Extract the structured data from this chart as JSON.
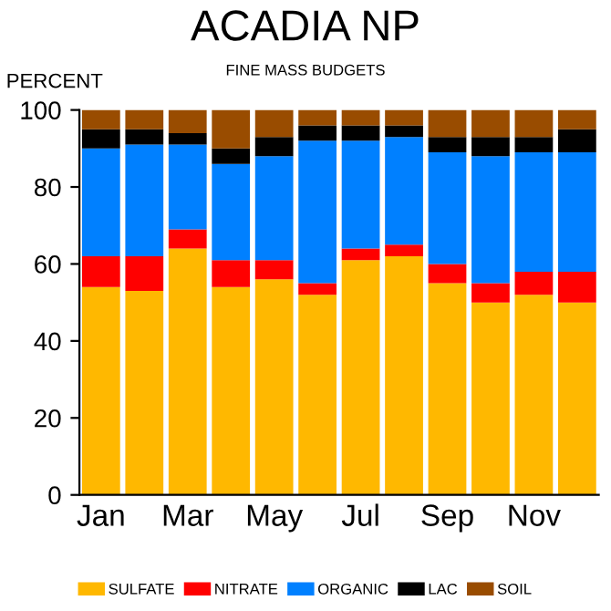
{
  "chart_data": {
    "type": "bar",
    "title": "ACADIA NP",
    "subtitle": "FINE MASS BUDGETS",
    "ylabel": "PERCENT",
    "stacked": true,
    "categories": [
      "Jan",
      null,
      "Mar",
      null,
      "May",
      null,
      "Jul",
      null,
      "Sep",
      null,
      "Nov",
      null
    ],
    "series": [
      {
        "name": "SULFATE",
        "color": "#ffb800",
        "values": [
          54,
          53,
          64,
          54,
          56,
          52,
          61,
          62,
          55,
          50,
          52,
          50
        ]
      },
      {
        "name": "NITRATE",
        "color": "#ff0000",
        "values": [
          8,
          9,
          5,
          7,
          5,
          3,
          3,
          3,
          5,
          5,
          6,
          8
        ]
      },
      {
        "name": "ORGANIC",
        "color": "#0080ff",
        "values": [
          28,
          29,
          22,
          25,
          27,
          37,
          28,
          28,
          29,
          33,
          31,
          31
        ]
      },
      {
        "name": "LAC",
        "color": "#000000",
        "values": [
          5,
          4,
          3,
          4,
          5,
          4,
          4,
          3,
          4,
          5,
          4,
          6
        ]
      },
      {
        "name": "SOIL",
        "color": "#994c00",
        "values": [
          5,
          5,
          6,
          10,
          7,
          4,
          4,
          4,
          7,
          7,
          7,
          5
        ]
      }
    ],
    "ylim": [
      0,
      100
    ],
    "yticks": [
      0,
      20,
      40,
      60,
      80,
      100
    ],
    "grid": false,
    "legend": "bottom"
  }
}
